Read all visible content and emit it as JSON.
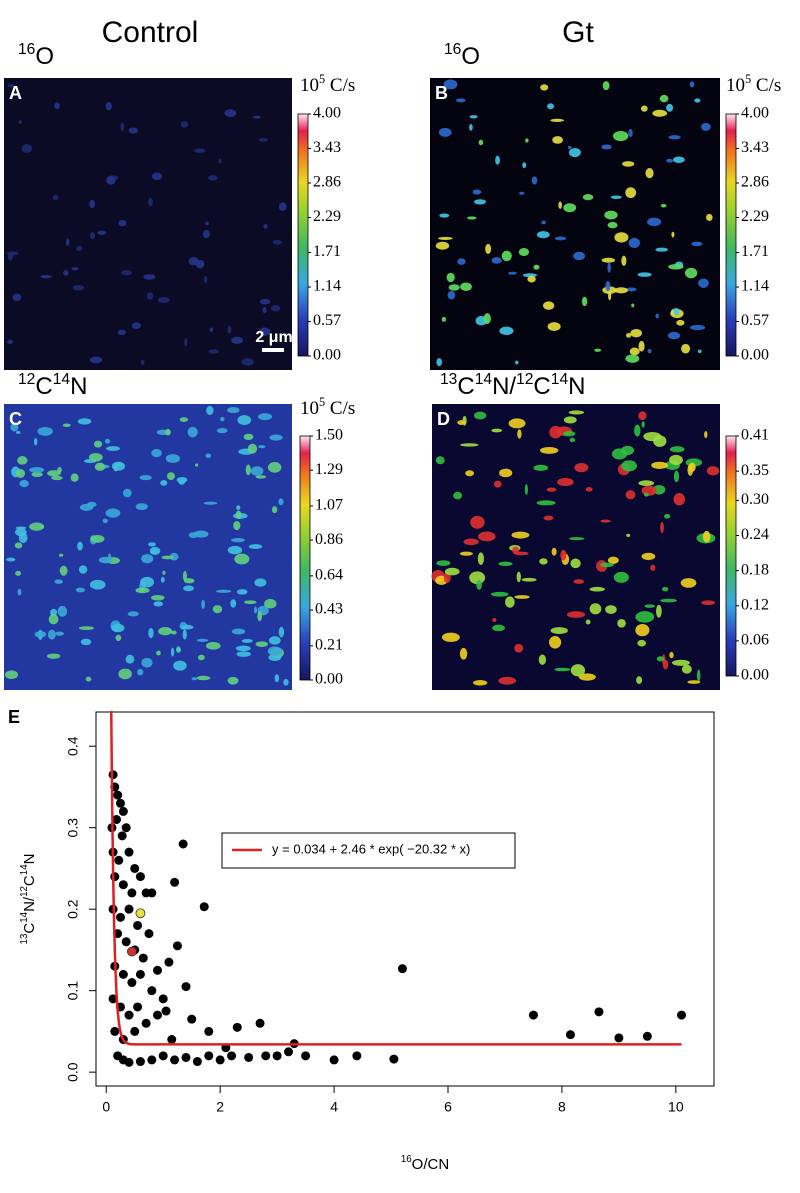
{
  "figure": {
    "columns": [
      "Control",
      "Gt"
    ],
    "panels": [
      {
        "letter": "A",
        "label": [
          {
            "sup": "16"
          },
          {
            "text": "O"
          }
        ],
        "unit": [
          {
            "text": "10"
          },
          {
            "sup": "5"
          },
          {
            "text": " C/s"
          }
        ],
        "colorbar": {
          "lim": [
            0,
            4
          ],
          "ticks": [
            {
              "value": 0,
              "label": "0.00"
            },
            {
              "value": 0.57,
              "label": "0.57"
            },
            {
              "value": 1.14,
              "label": "1.14"
            },
            {
              "value": 1.71,
              "label": "1.71"
            },
            {
              "value": 2.29,
              "label": "2.29"
            },
            {
              "value": 2.86,
              "label": "2.86"
            },
            {
              "value": 3.43,
              "label": "3.43"
            },
            {
              "value": 4,
              "label": "4.00"
            }
          ]
        },
        "scale_bar": "2 μm"
      },
      {
        "letter": "B",
        "label": [
          {
            "sup": "16"
          },
          {
            "text": "O"
          }
        ],
        "unit": [
          {
            "text": "10"
          },
          {
            "sup": "5"
          },
          {
            "text": " C/s"
          }
        ],
        "colorbar": {
          "lim": [
            0,
            4
          ],
          "ticks": [
            {
              "value": 0,
              "label": "0.00"
            },
            {
              "value": 0.57,
              "label": "0.57"
            },
            {
              "value": 1.14,
              "label": "1.14"
            },
            {
              "value": 1.71,
              "label": "1.71"
            },
            {
              "value": 2.29,
              "label": "2.29"
            },
            {
              "value": 2.86,
              "label": "2.86"
            },
            {
              "value": 3.43,
              "label": "3.43"
            },
            {
              "value": 4,
              "label": "4.00"
            }
          ]
        }
      },
      {
        "letter": "C",
        "label": [
          {
            "sup": "12"
          },
          {
            "text": "C"
          },
          {
            "sup": "14"
          },
          {
            "text": "N"
          }
        ],
        "unit": [
          {
            "text": "10"
          },
          {
            "sup": "5"
          },
          {
            "text": " C/s"
          }
        ],
        "colorbar": {
          "lim": [
            0,
            1.5
          ],
          "ticks": [
            {
              "value": 0,
              "label": "0.00"
            },
            {
              "value": 0.21,
              "label": "0.21"
            },
            {
              "value": 0.43,
              "label": "0.43"
            },
            {
              "value": 0.64,
              "label": "0.64"
            },
            {
              "value": 0.86,
              "label": "0.86"
            },
            {
              "value": 1.07,
              "label": "1.07"
            },
            {
              "value": 1.29,
              "label": "1.29"
            },
            {
              "value": 1.5,
              "label": "1.50"
            }
          ]
        }
      },
      {
        "letter": "D",
        "label": [
          {
            "sup": "13"
          },
          {
            "text": "C"
          },
          {
            "sup": "14"
          },
          {
            "text": "N/"
          },
          {
            "sup": "12"
          },
          {
            "text": "C"
          },
          {
            "sup": "14"
          },
          {
            "text": "N"
          }
        ],
        "colorbar": {
          "lim": [
            0,
            0.41
          ],
          "ticks": [
            {
              "value": 0,
              "label": "0.00"
            },
            {
              "value": 0.06,
              "label": "0.06"
            },
            {
              "value": 0.12,
              "label": "0.12"
            },
            {
              "value": 0.18,
              "label": "0.18"
            },
            {
              "value": 0.24,
              "label": "0.24"
            },
            {
              "value": 0.3,
              "label": "0.30"
            },
            {
              "value": 0.35,
              "label": "0.35"
            },
            {
              "value": 0.41,
              "label": "0.41"
            }
          ]
        }
      }
    ]
  },
  "chart_data": {
    "type": "scatter",
    "panel_letter": "E",
    "x_label": [
      {
        "sup": "16"
      },
      {
        "text": "O/CN"
      }
    ],
    "y_label": [
      {
        "sup": "13"
      },
      {
        "text": "C"
      },
      {
        "sup": "14"
      },
      {
        "text": "N/"
      },
      {
        "sup": "12"
      },
      {
        "text": "C"
      },
      {
        "sup": "14"
      },
      {
        "text": "N"
      }
    ],
    "xlim": [
      -0.18,
      10.67
    ],
    "ylim": [
      -0.017,
      0.442
    ],
    "xticks": [
      0,
      2,
      4,
      6,
      8,
      10
    ],
    "yticks": [
      {
        "value": 0,
        "label": "0.0"
      },
      {
        "value": 0.1,
        "label": "0.1"
      },
      {
        "value": 0.2,
        "label": "0.2"
      },
      {
        "value": 0.3,
        "label": "0.3"
      },
      {
        "value": 0.4,
        "label": "0.4"
      }
    ],
    "series": [
      {
        "color": "#000000",
        "x": [
          0.12,
          0.15,
          0.2,
          0.25,
          0.3,
          0.1,
          0.18,
          0.28,
          0.35,
          0.12,
          0.22,
          0.4,
          0.5,
          0.15,
          0.3,
          0.45,
          0.6,
          0.7,
          0.8,
          0.12,
          0.25,
          0.4,
          0.55,
          0.75,
          0.2,
          0.35,
          0.5,
          0.65,
          0.15,
          0.3,
          0.45,
          0.6,
          0.8,
          0.12,
          0.25,
          0.4,
          0.55,
          0.7,
          0.9,
          1.0,
          0.15,
          0.3,
          0.5,
          0.2,
          0.3,
          0.4,
          0.6,
          0.8,
          1.0,
          1.2,
          1.4,
          1.6,
          1.8,
          2.0,
          2.2,
          2.5,
          2.8,
          3.0,
          3.2,
          3.5,
          1.35,
          1.2,
          1.72,
          1.1,
          1.25,
          1.4,
          1.05,
          1.5,
          1.8,
          2.3,
          2.7,
          3.3,
          4.0,
          4.4,
          5.05,
          5.2,
          7.5,
          8.15,
          8.65,
          9.0,
          9.5,
          10.1,
          0.9,
          1.15,
          2.1
        ],
        "values": [
          0.365,
          0.35,
          0.34,
          0.33,
          0.32,
          0.3,
          0.31,
          0.29,
          0.3,
          0.27,
          0.26,
          0.27,
          0.25,
          0.24,
          0.23,
          0.22,
          0.24,
          0.22,
          0.22,
          0.2,
          0.19,
          0.2,
          0.18,
          0.17,
          0.17,
          0.16,
          0.15,
          0.14,
          0.13,
          0.12,
          0.11,
          0.12,
          0.1,
          0.09,
          0.08,
          0.07,
          0.08,
          0.06,
          0.07,
          0.09,
          0.05,
          0.04,
          0.05,
          0.02,
          0.015,
          0.012,
          0.013,
          0.015,
          0.02,
          0.015,
          0.018,
          0.013,
          0.02,
          0.015,
          0.02,
          0.018,
          0.02,
          0.02,
          0.025,
          0.02,
          0.28,
          0.233,
          0.203,
          0.135,
          0.155,
          0.105,
          0.075,
          0.065,
          0.05,
          0.055,
          0.06,
          0.035,
          0.015,
          0.02,
          0.016,
          0.127,
          0.07,
          0.046,
          0.074,
          0.042,
          0.044,
          0.07,
          0.125,
          0.04,
          0.03
        ]
      },
      {
        "color": "#e8e040",
        "x": [
          0.6
        ],
        "values": [
          0.195
        ]
      },
      {
        "color": "#d03030",
        "x": [
          0.45
        ],
        "values": [
          0.148
        ]
      }
    ],
    "fit": {
      "label": "y = 0.034 + 2.46 * exp( −20.32 * x)",
      "a": 0.034,
      "b": 2.46,
      "k": -20.32,
      "x_range": [
        0.08,
        10.1
      ],
      "color": "#e02020"
    }
  }
}
